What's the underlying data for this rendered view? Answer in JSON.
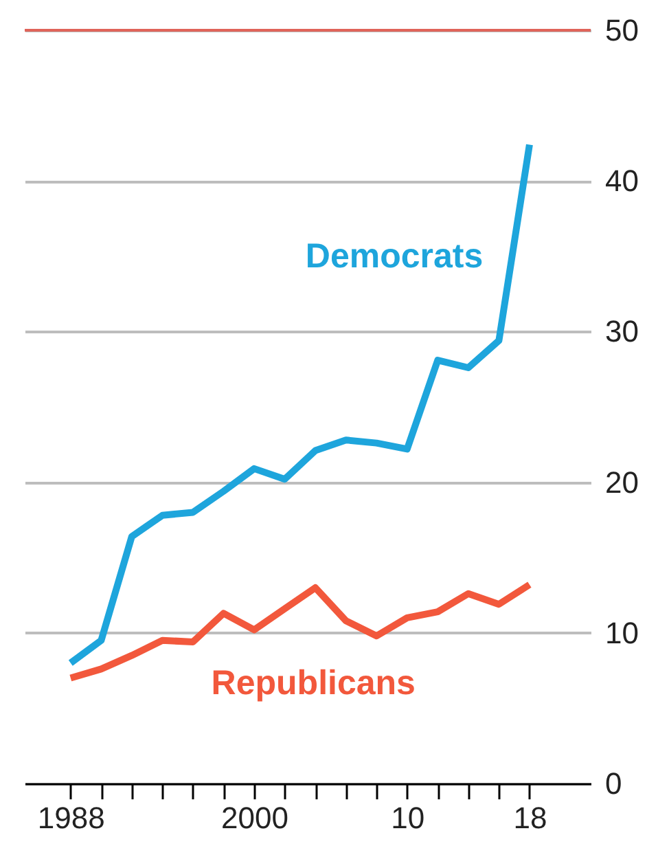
{
  "chart_data": {
    "type": "line",
    "x": [
      1988,
      1990,
      1992,
      1994,
      1996,
      1998,
      2000,
      2002,
      2004,
      2006,
      2008,
      2010,
      2012,
      2014,
      2016,
      2018
    ],
    "series": [
      {
        "name": "Democrats",
        "color": "#1ea5dc",
        "values": [
          8.0,
          9.5,
          16.4,
          17.8,
          18.0,
          19.4,
          20.9,
          20.2,
          22.1,
          22.8,
          22.6,
          22.2,
          28.1,
          27.6,
          29.4,
          42.4
        ]
      },
      {
        "name": "Republicans",
        "color": "#f2583c",
        "values": [
          7.0,
          7.6,
          8.5,
          9.5,
          9.4,
          11.3,
          10.2,
          11.6,
          13.0,
          10.8,
          9.8,
          11.0,
          11.4,
          12.6,
          11.9,
          13.2
        ]
      }
    ],
    "xlim": [
      1985,
      2022
    ],
    "xticks": [
      1988,
      {
        "value": 1990,
        "label": null
      },
      {
        "value": 1992,
        "label": null
      },
      {
        "value": 1994,
        "label": null
      },
      {
        "value": 1996,
        "label": null
      },
      {
        "value": 1998,
        "label": null
      },
      2000,
      {
        "value": 2002,
        "label": null
      },
      {
        "value": 2004,
        "label": null
      },
      {
        "value": 2006,
        "label": null
      },
      {
        "value": 2008,
        "label": null
      },
      {
        "value": 2010,
        "label": "10"
      },
      {
        "value": 2012,
        "label": null
      },
      {
        "value": 2014,
        "label": null
      },
      {
        "value": 2016,
        "label": null
      },
      {
        "value": 2018,
        "label": "18"
      }
    ],
    "ylim": [
      0,
      50
    ],
    "yticks": [
      0,
      10,
      20,
      30,
      40,
      50
    ],
    "grid": "y",
    "ref_lines": [
      {
        "axis": "y",
        "value": 50,
        "color": "#e0645a"
      }
    ]
  }
}
